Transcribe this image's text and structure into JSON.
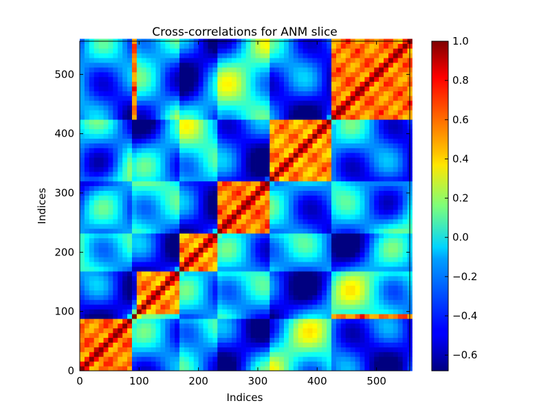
{
  "chart_data": {
    "type": "heatmap",
    "title": "Cross-correlations for ANM slice",
    "xlabel": "Indices",
    "ylabel": "Indices",
    "n": 556,
    "xlim": [
      0,
      556
    ],
    "ylim": [
      0,
      556
    ],
    "xticks": [
      0,
      100,
      200,
      300,
      400,
      500
    ],
    "yticks": [
      0,
      100,
      200,
      300,
      400,
      500
    ],
    "xtick_labels": [
      "0",
      "100",
      "200",
      "300",
      "400",
      "500"
    ],
    "ytick_labels": [
      "0",
      "100",
      "200",
      "300",
      "400",
      "500"
    ],
    "colorbar": {
      "min": -0.68,
      "max": 1.0,
      "ticks": [
        1.0,
        0.8,
        0.6,
        0.4,
        0.2,
        0.0,
        -0.2,
        -0.4,
        -0.6
      ],
      "tick_labels": [
        "1.0",
        "0.8",
        "0.6",
        "0.4",
        "0.2",
        "0.0",
        "−0.2",
        "−0.4",
        "−0.6"
      ],
      "colormap": "jet"
    },
    "blocks": [
      {
        "start": 0,
        "end": 90,
        "level": 0.85
      },
      {
        "start": 95,
        "end": 170,
        "level": 0.8
      },
      {
        "start": 170,
        "end": 235,
        "level": 0.8
      },
      {
        "start": 235,
        "end": 320,
        "level": 0.85
      },
      {
        "start": 320,
        "end": 425,
        "level": 0.8
      },
      {
        "start": 425,
        "end": 556,
        "level": 0.85
      }
    ]
  }
}
